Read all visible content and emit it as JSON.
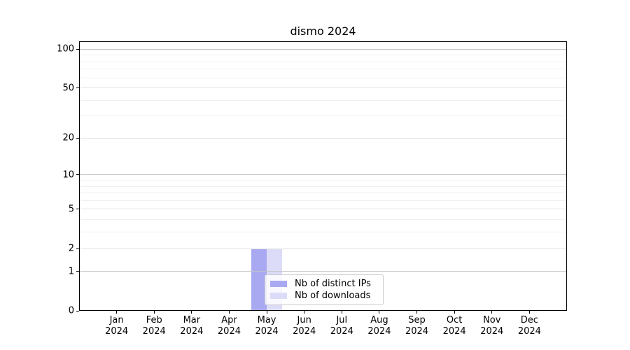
{
  "chart_data": {
    "type": "bar",
    "title": "dismo 2024",
    "months": [
      "Jan",
      "Feb",
      "Mar",
      "Apr",
      "May",
      "Jun",
      "Jul",
      "Aug",
      "Sep",
      "Oct",
      "Nov",
      "Dec"
    ],
    "year": "2024",
    "series": [
      {
        "name": "Nb of distinct IPs",
        "color": "#a9a9f2",
        "values": [
          0,
          0,
          0,
          0,
          2,
          0,
          0,
          0,
          0,
          0,
          0,
          0
        ]
      },
      {
        "name": "Nb of downloads",
        "color": "#dcdcf8",
        "values": [
          0,
          0,
          0,
          0,
          2,
          0,
          0,
          0,
          0,
          0,
          0,
          0
        ]
      }
    ],
    "y_axis": {
      "scale": "log1p",
      "ticks": [
        0,
        1,
        2,
        5,
        10,
        20,
        50,
        100
      ],
      "major_gridlines": [
        1,
        10,
        100
      ],
      "mid_gridlines": [
        2,
        5,
        20,
        50
      ],
      "minor_gridlines": [
        3,
        4,
        6,
        7,
        8,
        9,
        30,
        40,
        60,
        70,
        80,
        90
      ],
      "ylim": [
        0,
        115
      ]
    },
    "legend": {
      "position": "lower-center"
    },
    "colors": {
      "grid_major": "#c4c4c4",
      "grid_mid": "#e3e3e3",
      "grid_minor": "#f1f1f1",
      "spine": "#000000",
      "background": "#ffffff"
    }
  }
}
